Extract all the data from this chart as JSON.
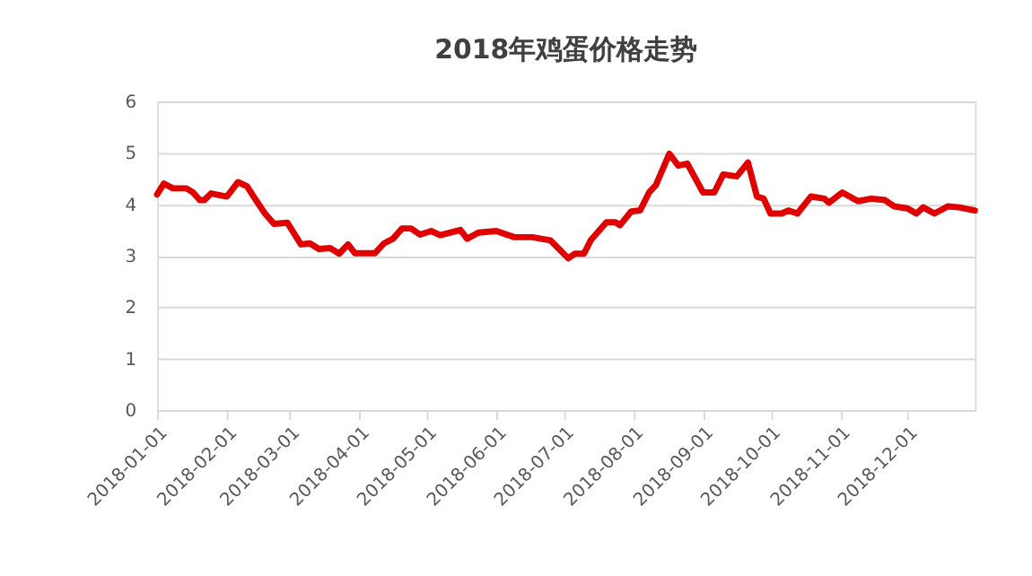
{
  "chart_data": {
    "type": "line",
    "title": "2018年鸡蛋价格走势",
    "x": [
      "2018-01-01",
      "2018-01-04",
      "2018-01-08",
      "2018-01-14",
      "2018-01-17",
      "2018-01-20",
      "2018-01-22",
      "2018-01-25",
      "2018-02-01",
      "2018-02-06",
      "2018-02-10",
      "2018-02-14",
      "2018-02-18",
      "2018-02-22",
      "2018-02-28",
      "2018-03-06",
      "2018-03-10",
      "2018-03-14",
      "2018-03-19",
      "2018-03-23",
      "2018-03-27",
      "2018-03-30",
      "2018-04-08",
      "2018-04-12",
      "2018-04-16",
      "2018-04-20",
      "2018-04-24",
      "2018-04-28",
      "2018-05-03",
      "2018-05-07",
      "2018-05-16",
      "2018-05-19",
      "2018-05-24",
      "2018-06-01",
      "2018-06-09",
      "2018-06-17",
      "2018-06-25",
      "2018-07-03",
      "2018-07-06",
      "2018-07-10",
      "2018-07-13",
      "2018-07-20",
      "2018-07-24",
      "2018-07-26",
      "2018-07-31",
      "2018-08-04",
      "2018-08-08",
      "2018-08-11",
      "2018-08-17",
      "2018-08-21",
      "2018-08-25",
      "2018-09-01",
      "2018-09-06",
      "2018-09-10",
      "2018-09-16",
      "2018-09-21",
      "2018-09-25",
      "2018-09-28",
      "2018-10-01",
      "2018-10-06",
      "2018-10-09",
      "2018-10-13",
      "2018-10-19",
      "2018-10-25",
      "2018-10-27",
      "2018-11-02",
      "2018-11-09",
      "2018-11-15",
      "2018-11-21",
      "2018-11-25",
      "2018-12-01",
      "2018-12-05",
      "2018-12-08",
      "2018-12-13",
      "2018-12-19",
      "2018-12-24",
      "2018-12-31"
    ],
    "series": [
      {
        "color": "#e00000",
        "values": [
          4.19,
          4.4,
          4.31,
          4.31,
          4.23,
          4.08,
          4.08,
          4.21,
          4.15,
          4.43,
          4.35,
          4.08,
          3.82,
          3.62,
          3.64,
          3.22,
          3.24,
          3.13,
          3.15,
          3.04,
          3.22,
          3.05,
          3.05,
          3.24,
          3.33,
          3.53,
          3.53,
          3.41,
          3.48,
          3.4,
          3.5,
          3.33,
          3.45,
          3.48,
          3.36,
          3.36,
          3.3,
          2.95,
          3.04,
          3.04,
          3.3,
          3.65,
          3.65,
          3.59,
          3.86,
          3.88,
          4.23,
          4.37,
          4.98,
          4.75,
          4.79,
          4.23,
          4.23,
          4.58,
          4.54,
          4.81,
          4.15,
          4.11,
          3.82,
          3.82,
          3.88,
          3.82,
          4.15,
          4.11,
          4.03,
          4.23,
          4.06,
          4.11,
          4.08,
          3.96,
          3.92,
          3.82,
          3.94,
          3.82,
          3.96,
          3.94,
          3.88
        ]
      }
    ],
    "xlim": [
      "2018-01-01",
      "2018-12-31"
    ],
    "xticks": [
      "2018-01-01",
      "2018-02-01",
      "2018-03-01",
      "2018-04-01",
      "2018-05-01",
      "2018-06-01",
      "2018-07-01",
      "2018-08-01",
      "2018-09-01",
      "2018-10-01",
      "2018-11-01",
      "2018-12-01"
    ],
    "ylim": [
      0,
      6
    ],
    "yticks": [
      0,
      1,
      2,
      3,
      4,
      5,
      6
    ],
    "grid": "y",
    "line_style": "solid",
    "marker": "none"
  }
}
